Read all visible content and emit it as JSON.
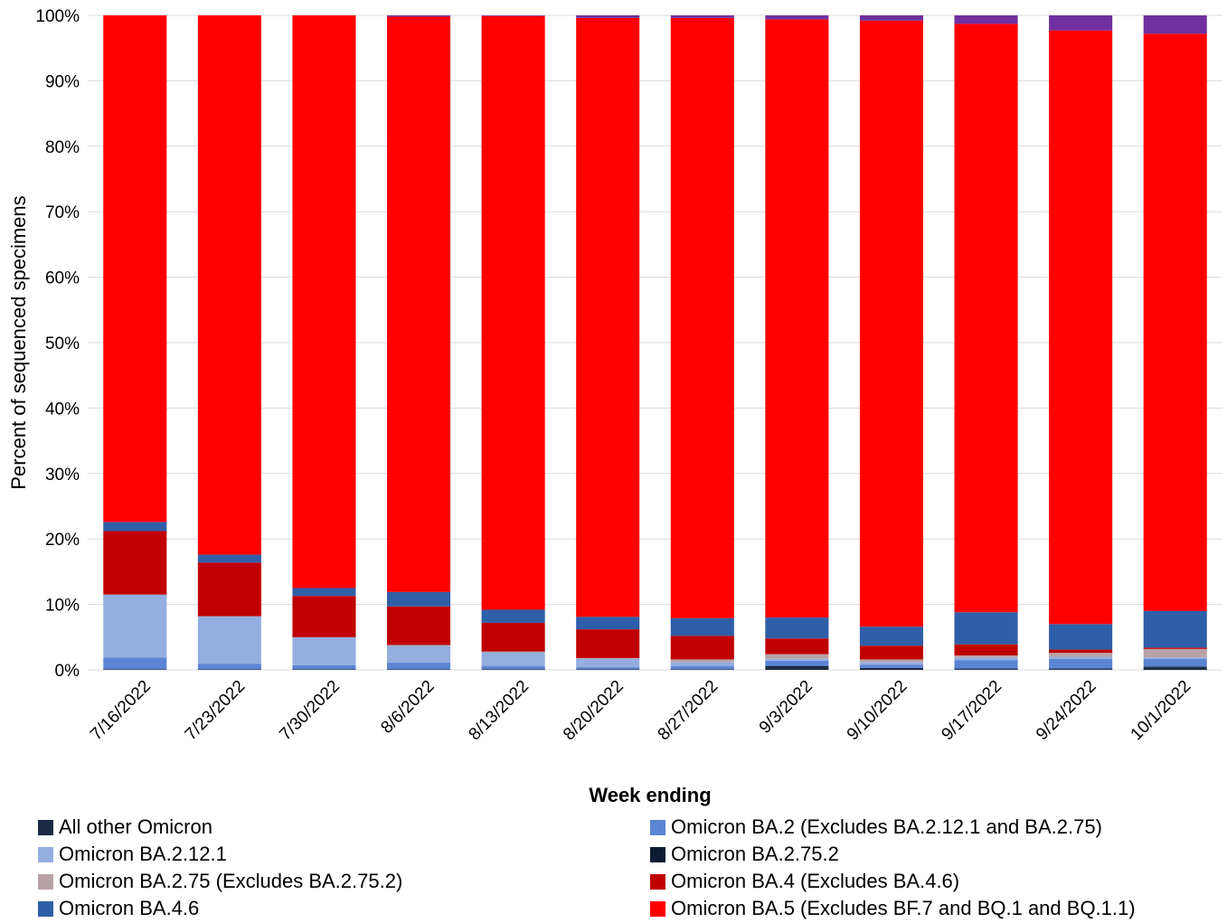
{
  "chart_data": {
    "type": "bar",
    "stacked": true,
    "percent_stacked": true,
    "title": "",
    "xlabel": "Week ending",
    "ylabel": "Percent of sequenced specimens",
    "ylim": [
      0,
      100
    ],
    "yticks": [
      "0%",
      "10%",
      "20%",
      "30%",
      "40%",
      "50%",
      "60%",
      "70%",
      "80%",
      "90%",
      "100%"
    ],
    "grid": "horizontal",
    "legend_position": "bottom",
    "categories": [
      "7/16/2022",
      "7/23/2022",
      "7/30/2022",
      "8/6/2022",
      "8/13/2022",
      "8/20/2022",
      "8/27/2022",
      "9/3/2022",
      "9/10/2022",
      "9/17/2022",
      "9/24/2022",
      "10/1/2022"
    ],
    "series": [
      {
        "name": "All other Omicron",
        "color": "#1a2a45",
        "values": [
          0.1,
          0.1,
          0.1,
          0.1,
          0.1,
          0.1,
          0.1,
          0.3,
          0.2,
          0.1,
          0.1,
          0.4
        ]
      },
      {
        "name": "Omicron BA.2.75.2",
        "color": "#0d1c33",
        "values": [
          0,
          0,
          0,
          0,
          0,
          0,
          0,
          0.3,
          0.1,
          0.1,
          0.1,
          0.1
        ]
      },
      {
        "name": "Omicron BA.2 (Excludes BA.2.12.1 and BA.2.75)",
        "color": "#5b84d4",
        "values": [
          1.8,
          0.8,
          0.6,
          1.0,
          0.5,
          0.3,
          0.5,
          0.8,
          0.5,
          1.3,
          1.5,
          1.2
        ]
      },
      {
        "name": "Omicron BA.2.12.1",
        "color": "#93aedf",
        "values": [
          9.6,
          7.3,
          4.3,
          2.6,
          2.1,
          1.3,
          0.6,
          0.3,
          0.4,
          0.4,
          0.3,
          0.2
        ]
      },
      {
        "name": "Omicron BA.2.75 (Excludes BA.2.75.2)",
        "color": "#b8a2a6",
        "values": [
          0,
          0,
          0,
          0.1,
          0.1,
          0.1,
          0.4,
          0.7,
          0.4,
          0.3,
          0.6,
          1.3
        ]
      },
      {
        "name": "Omicron BA.4 (Excludes BA.4.6)",
        "color": "#c00000",
        "values": [
          9.7,
          8.2,
          6.3,
          5.9,
          4.4,
          4.4,
          3.6,
          2.4,
          2.1,
          1.7,
          0.5,
          0.2
        ]
      },
      {
        "name": "Omicron BA.4.6",
        "color": "#2f5ea8",
        "values": [
          1.4,
          1.2,
          1.2,
          2.2,
          2.0,
          1.9,
          2.7,
          3.2,
          2.9,
          4.9,
          3.9,
          5.6
        ]
      },
      {
        "name": "Omicron BA.5 (Excludes BF.7 and BQ.1 and BQ.1.1)",
        "color": "#ff0000",
        "values": [
          77.4,
          82.4,
          87.5,
          87.9,
          90.8,
          91.5,
          91.7,
          91.4,
          92.6,
          89.9,
          90.7,
          88.2
        ]
      },
      {
        "name": "",
        "color": "#7030a0",
        "values": [
          0,
          0,
          0,
          0.2,
          0.1,
          0.4,
          0.4,
          0.6,
          0.8,
          1.3,
          2.3,
          2.8
        ]
      }
    ]
  },
  "legend": {
    "items": [
      {
        "label": "All other Omicron",
        "color": "#1a2a45"
      },
      {
        "label": "Omicron BA.2 (Excludes BA.2.12.1 and BA.2.75)",
        "color": "#5b84d4"
      },
      {
        "label": "Omicron BA.2.12.1",
        "color": "#93aedf"
      },
      {
        "label": "Omicron BA.2.75.2",
        "color": "#0d1c33"
      },
      {
        "label": "Omicron BA.2.75 (Excludes BA.2.75.2)",
        "color": "#b8a2a6"
      },
      {
        "label": "Omicron BA.4 (Excludes BA.4.6)",
        "color": "#c00000"
      },
      {
        "label": "Omicron BA.4.6",
        "color": "#2f5ea8"
      },
      {
        "label": "Omicron BA.5 (Excludes BF.7 and BQ.1 and BQ.1.1)",
        "color": "#ff0000"
      }
    ]
  }
}
